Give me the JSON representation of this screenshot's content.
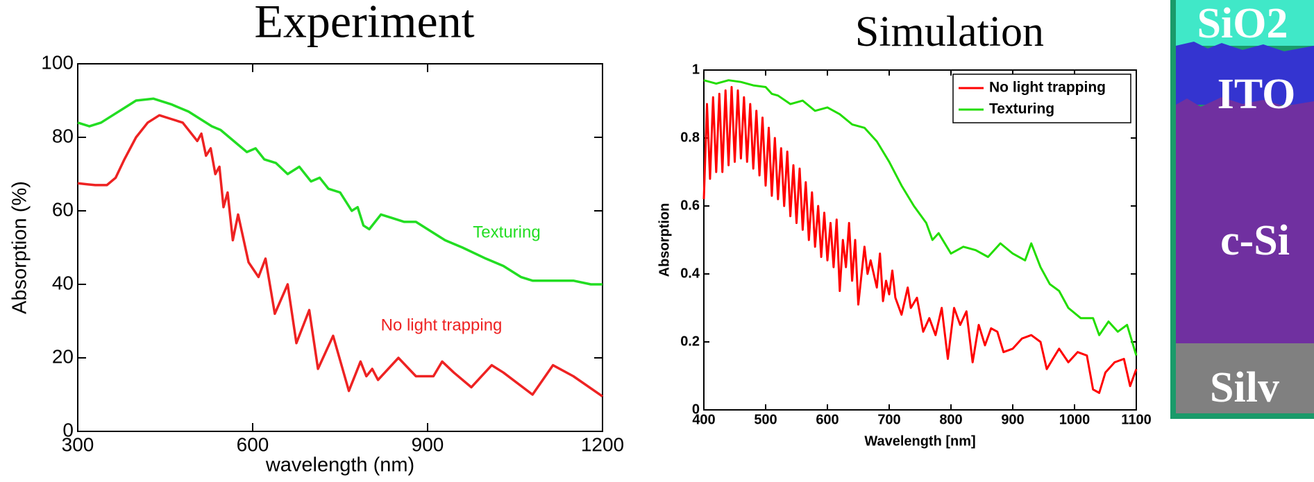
{
  "chart_data": [
    {
      "type": "line",
      "title": "Experiment",
      "xlabel": "wavelength (nm)",
      "ylabel": "Absorption (%)",
      "xlim": [
        300,
        1200
      ],
      "xticks": [
        300,
        600,
        900,
        1200
      ],
      "ylim": [
        0,
        100
      ],
      "yticks": [
        0,
        20,
        40,
        60,
        80,
        100
      ],
      "annotations": [
        {
          "text": "Texturing",
          "color": "#22dd22"
        },
        {
          "text": "No light trapping",
          "color": "#ee2222"
        }
      ],
      "series": [
        {
          "name": "Texturing",
          "color": "#22dd22",
          "x": [
            300,
            320,
            340,
            360,
            380,
            400,
            430,
            460,
            490,
            510,
            530,
            545,
            560,
            575,
            590,
            605,
            620,
            640,
            660,
            680,
            700,
            715,
            730,
            750,
            770,
            780,
            790,
            800,
            820,
            840,
            860,
            880,
            900,
            930,
            960,
            1000,
            1030,
            1060,
            1080,
            1100,
            1150,
            1180,
            1200
          ],
          "values": [
            84,
            83,
            84,
            86,
            88,
            90,
            90.5,
            89,
            87,
            85,
            83,
            82,
            80,
            78,
            76,
            77,
            74,
            73,
            70,
            72,
            68,
            69,
            66,
            65,
            60,
            61,
            56,
            55,
            59,
            58,
            57,
            57,
            55,
            52,
            50,
            47,
            45,
            42,
            41,
            41,
            41,
            40,
            40
          ]
        },
        {
          "name": "No light trapping",
          "color": "#ee2222",
          "x": [
            300,
            330,
            350,
            365,
            380,
            400,
            420,
            440,
            460,
            480,
            495,
            505,
            512,
            520,
            528,
            536,
            543,
            550,
            557,
            566,
            575,
            593,
            610,
            622,
            638,
            660,
            675,
            697,
            712,
            738,
            765,
            785,
            795,
            805,
            815,
            850,
            880,
            910,
            925,
            945,
            975,
            1010,
            1030,
            1080,
            1115,
            1150,
            1200
          ],
          "values": [
            67.5,
            67,
            67,
            69,
            74,
            80,
            84,
            86,
            85,
            84,
            81,
            79,
            81,
            75,
            77,
            70,
            72,
            61,
            65,
            52,
            59,
            46,
            42,
            47,
            32,
            40,
            24,
            33,
            17,
            26,
            11,
            19,
            15,
            17,
            14,
            20,
            15,
            15,
            19,
            16,
            12,
            18,
            16,
            10,
            18,
            15,
            9.5
          ]
        }
      ]
    },
    {
      "type": "line",
      "title": "Simulation",
      "xlabel": "Wavelength [nm]",
      "ylabel": "Absorption",
      "xlim": [
        400,
        1100
      ],
      "xticks": [
        400,
        500,
        600,
        700,
        800,
        900,
        1000,
        1100
      ],
      "ylim": [
        0,
        1
      ],
      "yticks": [
        0,
        0.2,
        0.4,
        0.6,
        0.8,
        1
      ],
      "legend": "upper right",
      "series": [
        {
          "name": "No light trapping",
          "color": "#ff0000",
          "x": [
            400,
            405,
            410,
            415,
            420,
            425,
            430,
            435,
            440,
            445,
            450,
            455,
            460,
            465,
            470,
            475,
            480,
            485,
            490,
            495,
            500,
            505,
            510,
            515,
            520,
            525,
            530,
            535,
            540,
            545,
            550,
            555,
            560,
            565,
            570,
            575,
            580,
            585,
            590,
            595,
            600,
            605,
            610,
            615,
            620,
            625,
            630,
            635,
            640,
            645,
            650,
            660,
            665,
            670,
            680,
            685,
            690,
            695,
            700,
            705,
            710,
            720,
            730,
            735,
            745,
            755,
            765,
            775,
            785,
            795,
            805,
            815,
            825,
            835,
            845,
            855,
            865,
            875,
            885,
            900,
            915,
            930,
            945,
            955,
            965,
            975,
            990,
            1005,
            1020,
            1030,
            1040,
            1050,
            1065,
            1080,
            1090,
            1100
          ],
          "values": [
            0.62,
            0.9,
            0.68,
            0.92,
            0.7,
            0.93,
            0.7,
            0.94,
            0.72,
            0.95,
            0.73,
            0.94,
            0.74,
            0.92,
            0.73,
            0.9,
            0.71,
            0.88,
            0.69,
            0.86,
            0.66,
            0.83,
            0.63,
            0.8,
            0.62,
            0.77,
            0.6,
            0.76,
            0.57,
            0.72,
            0.55,
            0.71,
            0.53,
            0.67,
            0.5,
            0.64,
            0.48,
            0.6,
            0.45,
            0.58,
            0.44,
            0.55,
            0.42,
            0.56,
            0.35,
            0.5,
            0.42,
            0.55,
            0.38,
            0.5,
            0.31,
            0.48,
            0.4,
            0.44,
            0.36,
            0.46,
            0.32,
            0.38,
            0.34,
            0.41,
            0.33,
            0.28,
            0.36,
            0.3,
            0.33,
            0.23,
            0.27,
            0.22,
            0.3,
            0.15,
            0.3,
            0.25,
            0.29,
            0.14,
            0.25,
            0.19,
            0.24,
            0.23,
            0.17,
            0.18,
            0.21,
            0.22,
            0.2,
            0.12,
            0.15,
            0.18,
            0.14,
            0.17,
            0.16,
            0.06,
            0.05,
            0.11,
            0.14,
            0.15,
            0.07,
            0.12
          ]
        },
        {
          "name": "Texturing",
          "color": "#22dd00",
          "x": [
            400,
            420,
            440,
            460,
            480,
            500,
            510,
            520,
            540,
            560,
            580,
            600,
            620,
            640,
            660,
            680,
            700,
            720,
            740,
            760,
            770,
            780,
            800,
            820,
            840,
            860,
            880,
            900,
            920,
            930,
            945,
            960,
            975,
            990,
            1010,
            1030,
            1040,
            1055,
            1070,
            1085,
            1100
          ],
          "values": [
            0.97,
            0.96,
            0.97,
            0.965,
            0.955,
            0.95,
            0.93,
            0.925,
            0.9,
            0.91,
            0.88,
            0.89,
            0.87,
            0.84,
            0.83,
            0.79,
            0.73,
            0.66,
            0.6,
            0.55,
            0.5,
            0.52,
            0.46,
            0.48,
            0.47,
            0.45,
            0.49,
            0.46,
            0.44,
            0.49,
            0.42,
            0.37,
            0.35,
            0.3,
            0.27,
            0.27,
            0.22,
            0.26,
            0.23,
            0.25,
            0.16
          ]
        }
      ]
    }
  ],
  "layers": [
    "SiO2",
    "ITO",
    "c-Si",
    "Silv"
  ]
}
